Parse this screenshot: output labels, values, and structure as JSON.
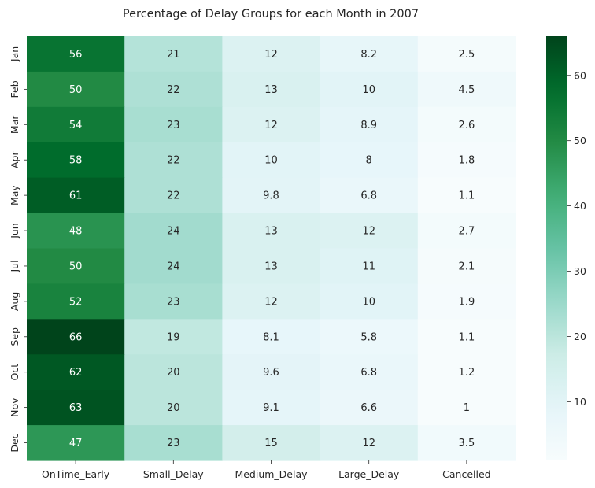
{
  "chart_data": {
    "type": "heatmap",
    "title": "Percentage of Delay Groups for each Month in 2007",
    "x_categories": [
      "OnTime_Early",
      "Small_Delay",
      "Medium_Delay",
      "Large_Delay",
      "Cancelled"
    ],
    "y_categories": [
      "Jan",
      "Feb",
      "Mar",
      "Apr",
      "May",
      "Jun",
      "Jul",
      "Aug",
      "Sep",
      "Oct",
      "Nov",
      "Dec"
    ],
    "values": [
      [
        56,
        21,
        12,
        8.2,
        2.5
      ],
      [
        50,
        22,
        13,
        10,
        4.5
      ],
      [
        54,
        23,
        12,
        8.9,
        2.6
      ],
      [
        58,
        22,
        10,
        8,
        1.8
      ],
      [
        61,
        22,
        9.8,
        6.8,
        1.1
      ],
      [
        48,
        24,
        13,
        12,
        2.7
      ],
      [
        50,
        24,
        13,
        11,
        2.1
      ],
      [
        52,
        23,
        12,
        10,
        1.9
      ],
      [
        66,
        19,
        8.1,
        5.8,
        1.1
      ],
      [
        62,
        20,
        9.6,
        6.8,
        1.2
      ],
      [
        63,
        20,
        9.1,
        6.6,
        1
      ],
      [
        47,
        23,
        15,
        12,
        3.5
      ]
    ],
    "colormap": "BuGn",
    "colorbar": {
      "range": [
        1,
        66
      ],
      "ticks": [
        10,
        20,
        30,
        40,
        50,
        60
      ]
    },
    "annotations": true,
    "grid": false
  }
}
